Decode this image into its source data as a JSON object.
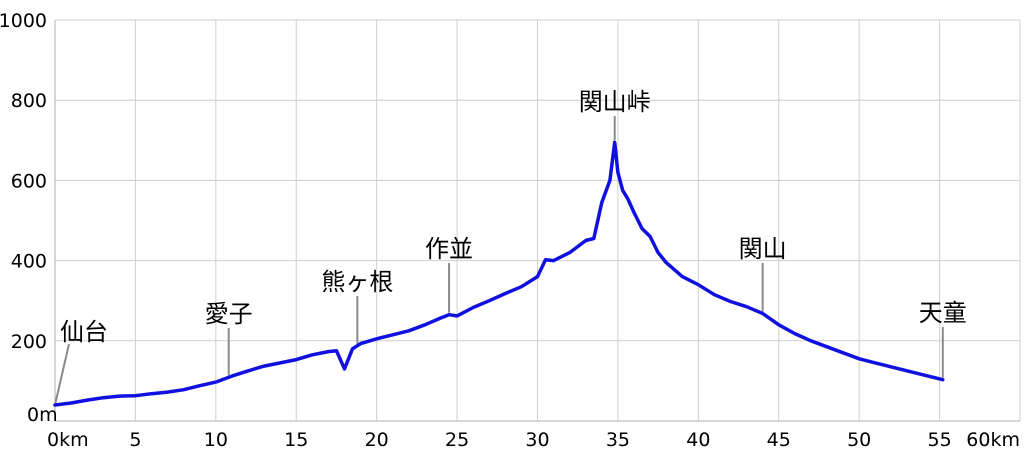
{
  "chart_data": {
    "type": "line",
    "title": "",
    "xlabel": "",
    "ylabel": "",
    "xlim": [
      0,
      60
    ],
    "ylim": [
      0,
      1000
    ],
    "grid": true,
    "x_ticks": [
      {
        "value": 0,
        "label": "0km"
      },
      {
        "value": 5,
        "label": "5"
      },
      {
        "value": 10,
        "label": "10"
      },
      {
        "value": 15,
        "label": "15"
      },
      {
        "value": 20,
        "label": "20"
      },
      {
        "value": 25,
        "label": "25"
      },
      {
        "value": 30,
        "label": "30"
      },
      {
        "value": 35,
        "label": "35"
      },
      {
        "value": 40,
        "label": "40"
      },
      {
        "value": 45,
        "label": "45"
      },
      {
        "value": 50,
        "label": "50"
      },
      {
        "value": 55,
        "label": "55"
      },
      {
        "value": 60,
        "label": "60km"
      }
    ],
    "y_ticks": [
      {
        "value": 0,
        "label": "0m"
      },
      {
        "value": 200,
        "label": "200"
      },
      {
        "value": 400,
        "label": "400"
      },
      {
        "value": 600,
        "label": "600"
      },
      {
        "value": 800,
        "label": "800"
      },
      {
        "value": 1000,
        "label": "1000"
      }
    ],
    "line_color": "#1010e0",
    "series": [
      {
        "name": "",
        "x": [
          0,
          1,
          2,
          3,
          4,
          5,
          6,
          7,
          8,
          9,
          10,
          11,
          12,
          13,
          14,
          15,
          16,
          17,
          17.5,
          18,
          18.5,
          19,
          20,
          21,
          22,
          23,
          24,
          24.5,
          25,
          26,
          27,
          28,
          29,
          30,
          30.5,
          31,
          32,
          33,
          33.5,
          34,
          34.5,
          34.8,
          35,
          35.3,
          35.6,
          36,
          36.5,
          37,
          37.5,
          38,
          39,
          40,
          41,
          42,
          43,
          44,
          45,
          46,
          47,
          48,
          49,
          50,
          51,
          52,
          53,
          54,
          55.2
        ],
        "y": [
          40,
          45,
          52,
          58,
          62,
          63,
          68,
          72,
          78,
          88,
          97,
          112,
          125,
          137,
          145,
          153,
          165,
          173,
          175,
          130,
          180,
          193,
          205,
          215,
          225,
          240,
          257,
          265,
          262,
          283,
          300,
          318,
          335,
          360,
          402,
          400,
          420,
          450,
          455,
          545,
          600,
          695,
          620,
          575,
          555,
          520,
          480,
          460,
          420,
          395,
          360,
          340,
          315,
          298,
          285,
          268,
          240,
          218,
          200,
          185,
          170,
          155,
          145,
          135,
          125,
          115,
          103
        ]
      }
    ],
    "annotations": [
      {
        "label": "仙台",
        "x": 0
      },
      {
        "label": "愛子",
        "x": 10.8
      },
      {
        "label": "熊ヶ根",
        "x": 18.8
      },
      {
        "label": "作並",
        "x": 24.5
      },
      {
        "label": "関山峠",
        "x": 34.8
      },
      {
        "label": "関山",
        "x": 44
      },
      {
        "label": "天童",
        "x": 55.2
      }
    ]
  }
}
